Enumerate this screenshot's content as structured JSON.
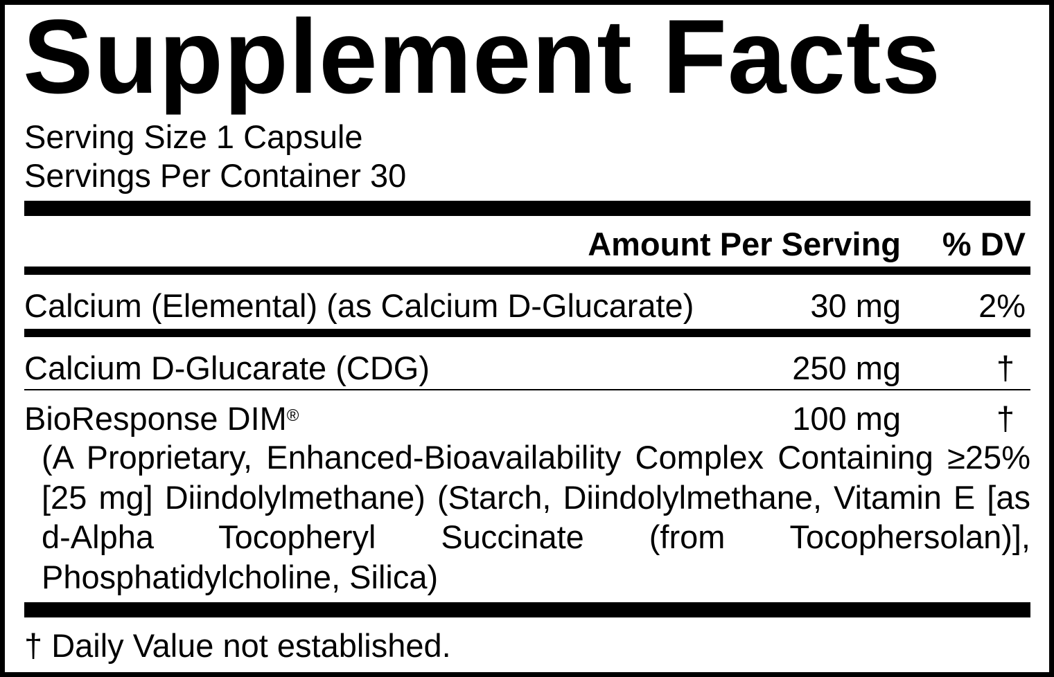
{
  "title": "Supplement Facts",
  "serving_size": "Serving Size 1 Capsule",
  "servings_per_container": "Servings Per Container 30",
  "header": {
    "amount": "Amount Per Serving",
    "dv": "% DV"
  },
  "rows": [
    {
      "name": "Calcium (Elemental) (as Calcium D-Glucarate)",
      "amount": "30 mg",
      "dv": "2%"
    },
    {
      "name": "Calcium D-Glucarate (CDG)",
      "amount": "250 mg",
      "dv": "†"
    },
    {
      "name": "BioResponse DIM",
      "name_mark": "®",
      "amount": "100 mg",
      "dv": "†",
      "description": "(A Proprietary, Enhanced-Bioavailability Complex Containing ≥25% [25 mg] Diindolylmethane) (Starch, Diindolylmethane, Vitamin E [as d-Alpha Tocopheryl Succinate (from Tocophersolan)], Phosphatidylcholine, Silica)"
    }
  ],
  "footnote": "† Daily Value not established."
}
